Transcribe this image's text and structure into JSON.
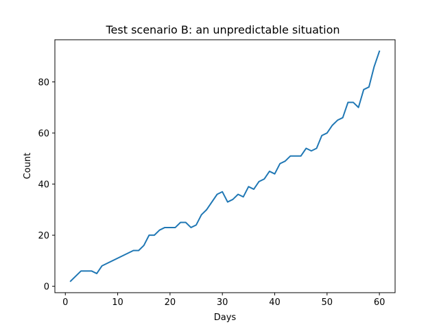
{
  "chart_data": {
    "type": "line",
    "title": "Test scenario B: an unpredictable situation",
    "xlabel": "Days",
    "ylabel": "Count",
    "xlim": [
      -2,
      63
    ],
    "ylim": [
      -2.5,
      96.5
    ],
    "x_ticks": [
      0,
      10,
      20,
      30,
      40,
      50,
      60
    ],
    "y_ticks": [
      0,
      20,
      40,
      60,
      80
    ],
    "grid": false,
    "line_color": "#1f77b4",
    "series": [
      {
        "x": [
          1,
          3,
          5,
          6,
          7,
          13,
          14,
          15,
          16,
          17,
          18,
          19,
          21,
          22,
          23,
          24,
          25,
          26,
          27,
          29,
          30,
          31,
          32,
          33,
          34,
          35,
          36,
          37,
          38,
          39,
          40,
          41,
          42,
          43,
          44,
          45,
          46,
          47,
          48,
          49,
          50,
          51,
          52,
          53,
          54,
          55,
          56,
          57,
          58,
          59,
          60
        ],
        "values": [
          2,
          6,
          6,
          5,
          8,
          14,
          14,
          16,
          20,
          20,
          22,
          23,
          23,
          25,
          25,
          23,
          24,
          28,
          30,
          36,
          37,
          33,
          34,
          36,
          35,
          39,
          38,
          41,
          42,
          45,
          44,
          48,
          49,
          51,
          51,
          51,
          54,
          53,
          54,
          59,
          60,
          63,
          65,
          66,
          72,
          72,
          70,
          77,
          78,
          86,
          92
        ]
      }
    ]
  }
}
